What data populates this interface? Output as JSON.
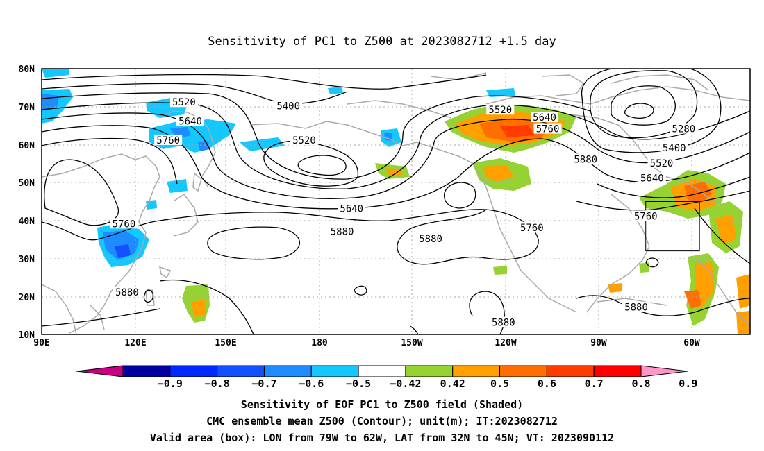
{
  "title": "Sensitivity of PC1 to Z500 at 2023082712 +1.5 day",
  "map": {
    "lat_labels": [
      "80N",
      "70N",
      "60N",
      "50N",
      "40N",
      "30N",
      "20N",
      "10N"
    ],
    "lon_labels": [
      "90E",
      "120E",
      "150E",
      "180",
      "150W",
      "120W",
      "90W",
      "60W"
    ],
    "contour_labels": [
      {
        "text": "5520",
        "lon": 135,
        "lat": 71
      },
      {
        "text": "5640",
        "lon": 137,
        "lat": 66
      },
      {
        "text": "5760",
        "lon": 130,
        "lat": 61
      },
      {
        "text": "5400",
        "lon": 168,
        "lat": 70
      },
      {
        "text": "5520",
        "lon": 173,
        "lat": 61
      },
      {
        "text": "5640",
        "lon": -172,
        "lat": 43
      },
      {
        "text": "5880",
        "lon": -175,
        "lat": 37
      },
      {
        "text": "5760",
        "lon": -115,
        "lat": 38
      },
      {
        "text": "5880",
        "lon": -147,
        "lat": 35
      },
      {
        "text": "5520",
        "lon": -125,
        "lat": 69
      },
      {
        "text": "5640",
        "lon": -111,
        "lat": 67
      },
      {
        "text": "5760",
        "lon": -110,
        "lat": 64
      },
      {
        "text": "5880",
        "lon": -98,
        "lat": 56
      },
      {
        "text": "5280",
        "lon": -67,
        "lat": 64
      },
      {
        "text": "5400",
        "lon": -70,
        "lat": 59
      },
      {
        "text": "5520",
        "lon": -74,
        "lat": 55
      },
      {
        "text": "5640",
        "lon": -77,
        "lat": 51
      },
      {
        "text": "5760",
        "lon": -79,
        "lat": 41
      },
      {
        "text": "5760",
        "lon": 116,
        "lat": 39
      },
      {
        "text": "5880",
        "lon": 117,
        "lat": 21
      },
      {
        "text": "5880",
        "lon": -82,
        "lat": 17
      },
      {
        "text": "5880",
        "lon": -124,
        "lat": 13
      }
    ],
    "valid_box": {
      "lon_min": -79,
      "lon_max": -62,
      "lat_min": 32,
      "lat_max": 45
    }
  },
  "colorbar": {
    "labels": [
      "-0.9",
      "-0.8",
      "-0.7",
      "-0.6",
      "-0.5",
      "-0.42",
      "0.42",
      "0.5",
      "0.6",
      "0.7",
      "0.8",
      "0.9"
    ],
    "colors": [
      "#c80082",
      "#0000a0",
      "#0028ff",
      "#1450ff",
      "#1e8cff",
      "#14c8ff",
      "#ffffff",
      "#96d232",
      "#ffa000",
      "#ff6e00",
      "#ff3c00",
      "#ff0000",
      "#ff96c8"
    ]
  },
  "captions": {
    "line1": "Sensitivity of EOF PC1 to Z500 field (Shaded)",
    "line2": "CMC ensemble mean Z500 (Contour); unit(m); IT:2023082712",
    "line3": "Valid area (box): LON from 79W to 62W, LAT from 32N to 45N; VT: 2023090112"
  }
}
